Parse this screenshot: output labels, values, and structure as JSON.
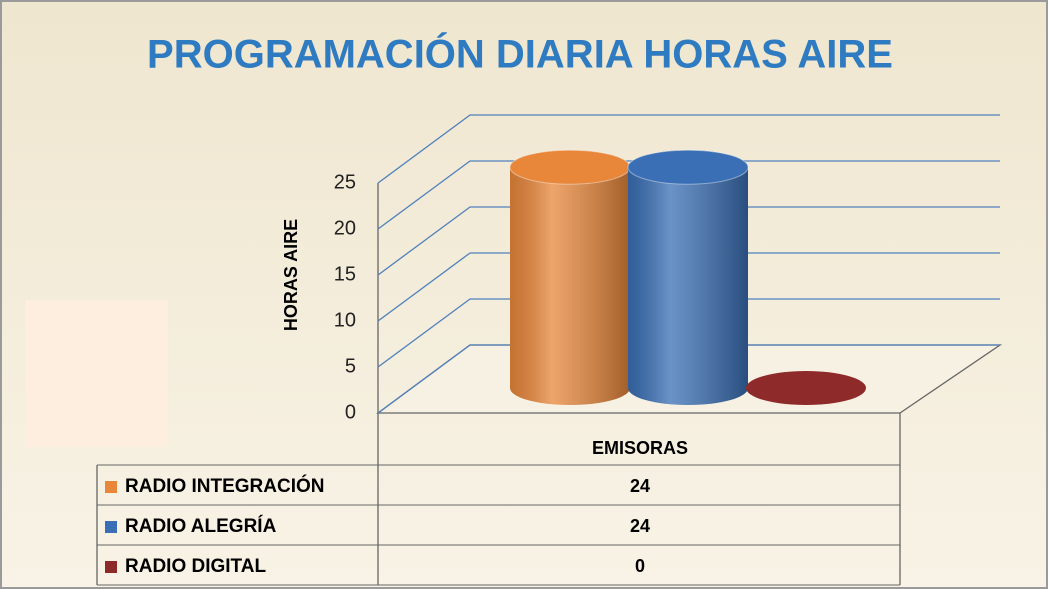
{
  "chart_data": {
    "type": "bar3d",
    "title": "PROGRAMACIÓN DIARIA HORAS AIRE",
    "y_label": "HORAS AIRE",
    "categories": [
      "EMISORAS"
    ],
    "series": [
      {
        "name": "RADIO INTEGRACIÓN",
        "color": "#e8873a",
        "values": [
          24
        ]
      },
      {
        "name": "RADIO ALEGRÍA",
        "color": "#3a6fb5",
        "values": [
          24
        ]
      },
      {
        "name": "RADIO DIGITAL",
        "color": "#8e2a2a",
        "values": [
          0
        ]
      }
    ],
    "ylim": [
      0,
      25
    ],
    "yticks": [
      0,
      5,
      10,
      15,
      20,
      25
    ],
    "grid": true,
    "data_table": true
  }
}
